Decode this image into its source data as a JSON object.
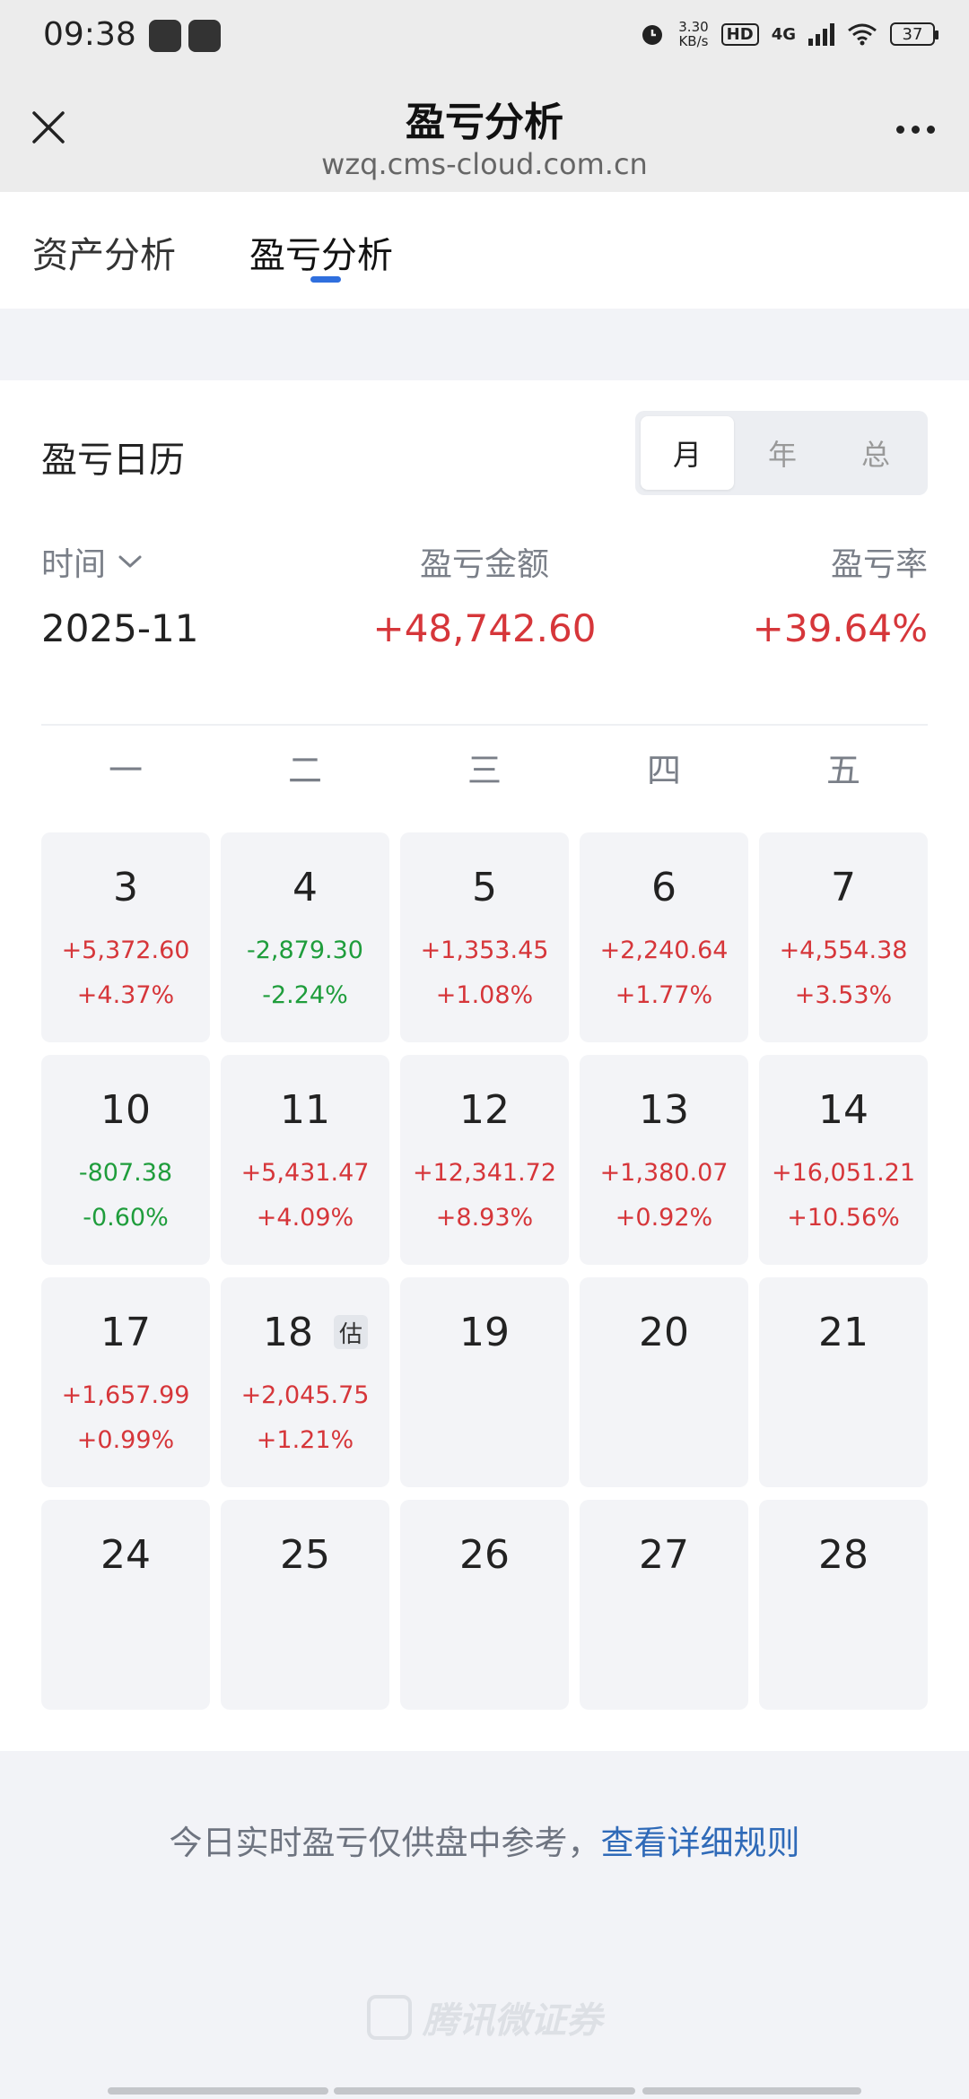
{
  "status_bar": {
    "time": "09:38",
    "net_speed_value": "3.30",
    "net_speed_unit": "KB/s",
    "hd": "HD",
    "network": "4G",
    "battery": "37"
  },
  "nav": {
    "title": "盈亏分析",
    "url": "wzq.cms-cloud.com.cn"
  },
  "tabs": [
    {
      "label": "资产分析",
      "active": false
    },
    {
      "label": "盈亏分析",
      "active": true
    }
  ],
  "calendar": {
    "title": "盈亏日历",
    "segments": [
      "月",
      "年",
      "总"
    ],
    "active_segment": "月",
    "headers": {
      "time": "时间",
      "amount": "盈亏金额",
      "rate": "盈亏率"
    },
    "period": "2025-11",
    "total_amount": "+48,742.60",
    "total_rate": "+39.64%",
    "weekdays": [
      "一",
      "二",
      "三",
      "四",
      "五"
    ],
    "estimate_badge": "估",
    "days": [
      {
        "day": "3",
        "amount": "+5,372.60",
        "rate": "+4.37%",
        "trend": "up"
      },
      {
        "day": "4",
        "amount": "-2,879.30",
        "rate": "-2.24%",
        "trend": "down"
      },
      {
        "day": "5",
        "amount": "+1,353.45",
        "rate": "+1.08%",
        "trend": "up"
      },
      {
        "day": "6",
        "amount": "+2,240.64",
        "rate": "+1.77%",
        "trend": "up"
      },
      {
        "day": "7",
        "amount": "+4,554.38",
        "rate": "+3.53%",
        "trend": "up"
      },
      {
        "day": "10",
        "amount": "-807.38",
        "rate": "-0.60%",
        "trend": "down"
      },
      {
        "day": "11",
        "amount": "+5,431.47",
        "rate": "+4.09%",
        "trend": "up"
      },
      {
        "day": "12",
        "amount": "+12,341.72",
        "rate": "+8.93%",
        "trend": "up"
      },
      {
        "day": "13",
        "amount": "+1,380.07",
        "rate": "+0.92%",
        "trend": "up"
      },
      {
        "day": "14",
        "amount": "+16,051.21",
        "rate": "+10.56%",
        "trend": "up"
      },
      {
        "day": "17",
        "amount": "+1,657.99",
        "rate": "+0.99%",
        "trend": "up"
      },
      {
        "day": "18",
        "amount": "+2,045.75",
        "rate": "+1.21%",
        "trend": "up",
        "estimated": true
      },
      {
        "day": "19",
        "amount": "",
        "rate": "",
        "trend": "none"
      },
      {
        "day": "20",
        "amount": "",
        "rate": "",
        "trend": "none"
      },
      {
        "day": "21",
        "amount": "",
        "rate": "",
        "trend": "none"
      },
      {
        "day": "24",
        "amount": "",
        "rate": "",
        "trend": "none"
      },
      {
        "day": "25",
        "amount": "",
        "rate": "",
        "trend": "none"
      },
      {
        "day": "26",
        "amount": "",
        "rate": "",
        "trend": "none"
      },
      {
        "day": "27",
        "amount": "",
        "rate": "",
        "trend": "none"
      },
      {
        "day": "28",
        "amount": "",
        "rate": "",
        "trend": "none"
      }
    ]
  },
  "footer": {
    "note": "今日实时盈亏仅供盘中参考，",
    "link": "查看详细规则",
    "brand": "腾讯微证券"
  },
  "colors": {
    "up": "#d6363a",
    "down": "#1f9d3c",
    "accent": "#2f6fde",
    "link": "#2f6ab8"
  }
}
